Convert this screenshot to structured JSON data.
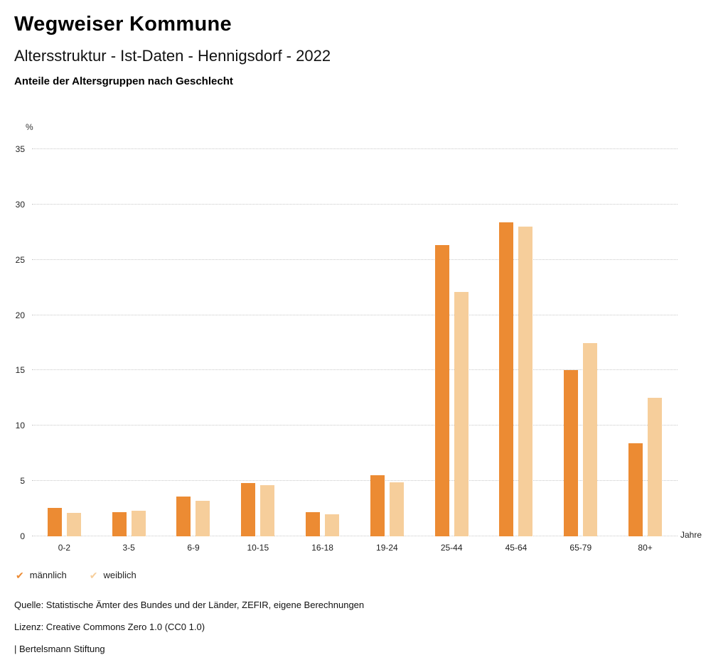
{
  "page": {
    "title": "Wegweiser Kommune",
    "subtitle": "Altersstruktur - Ist-Daten - Hennigsdorf - 2022",
    "heading": "Anteile der Altersgruppen nach Geschlecht"
  },
  "chart_data": {
    "type": "bar",
    "title": "Anteile der Altersgruppen nach Geschlecht",
    "categories": [
      "0-2",
      "3-5",
      "6-9",
      "10-15",
      "16-18",
      "19-24",
      "25-44",
      "45-64",
      "65-79",
      "80+"
    ],
    "series": [
      {
        "name": "männlich",
        "color": "#EC8B33",
        "values": [
          2.6,
          2.2,
          3.6,
          4.8,
          2.2,
          5.5,
          26.3,
          28.4,
          15.0,
          8.4
        ]
      },
      {
        "name": "weiblich",
        "color": "#F6CE9B",
        "values": [
          2.1,
          2.3,
          3.2,
          4.6,
          2.0,
          4.9,
          22.1,
          28.0,
          17.5,
          12.5
        ]
      }
    ],
    "ylabel": "%",
    "xlabel": "Jahre",
    "ylim": [
      0,
      35
    ],
    "yticks": [
      0,
      5,
      10,
      15,
      20,
      25,
      30,
      35
    ],
    "grid": true,
    "legend_position": "bottom-left"
  },
  "legend": {
    "check_icon": "✔"
  },
  "footer": {
    "source": "Quelle: Statistische Ämter des Bundes und der Länder, ZEFIR, eigene Berechnungen",
    "license": "Lizenz: Creative Commons Zero 1.0 (CC0 1.0)",
    "brand": "| Bertelsmann Stiftung"
  }
}
